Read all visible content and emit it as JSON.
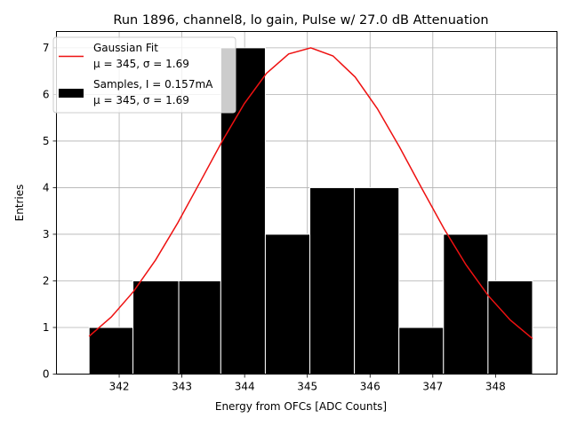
{
  "chart_data": {
    "type": "bar",
    "title": "Run 1896, channel8, lo gain, Pulse w/ 27.0 dB Attenuation",
    "xlabel": "Energy from OFCs [ADC Counts]",
    "ylabel": "Entries",
    "xlim": [
      341.0,
      348.98
    ],
    "ylim": [
      0,
      7.35
    ],
    "grid": true,
    "legend_position": "top-left",
    "x_ticks": [
      342,
      343,
      344,
      345,
      346,
      347,
      348
    ],
    "y_ticks": [
      0,
      1,
      2,
      3,
      4,
      5,
      6,
      7
    ],
    "histogram": {
      "name": "Samples, I = 0.157mA",
      "stats": "μ = 345, σ = 1.69",
      "bin_edges": [
        341.52,
        342.22,
        342.95,
        343.62,
        344.33,
        345.04,
        345.75,
        346.46,
        347.17,
        347.88,
        348.59
      ],
      "values": [
        1,
        2,
        2,
        7,
        3,
        4,
        4,
        1,
        3,
        2
      ],
      "color": "#000000"
    },
    "fit": {
      "name": "Gaussian Fit",
      "stats": "μ = 345, σ = 1.69",
      "mu": 345.03,
      "sigma": 1.69,
      "amplitude": 7.0,
      "x_range": [
        341.52,
        348.59
      ],
      "color": "#ee1111"
    }
  }
}
